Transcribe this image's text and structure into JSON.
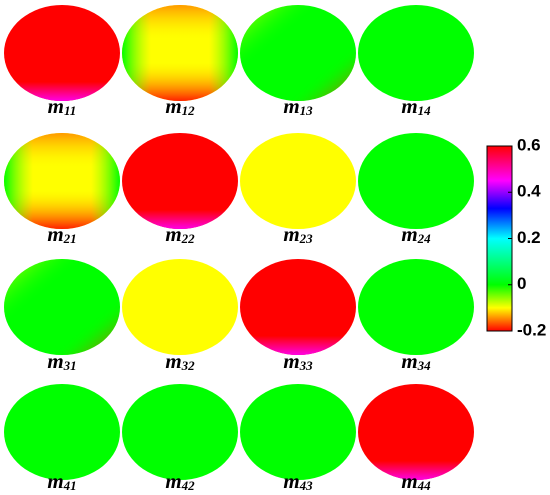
{
  "panels": [
    {
      "main": "m",
      "sub": "11",
      "value": 0.6,
      "pattern": "edge"
    },
    {
      "main": "m",
      "sub": "12",
      "value": -0.1,
      "pattern": "saddle"
    },
    {
      "main": "m",
      "sub": "13",
      "value": 0,
      "pattern": "quadrant"
    },
    {
      "main": "m",
      "sub": "14",
      "value": 0,
      "pattern": "uniform"
    },
    {
      "main": "m",
      "sub": "21",
      "value": -0.1,
      "pattern": "saddle"
    },
    {
      "main": "m",
      "sub": "22",
      "value": 0.6,
      "pattern": "edge"
    },
    {
      "main": "m",
      "sub": "23",
      "value": -0.1,
      "pattern": "uniform"
    },
    {
      "main": "m",
      "sub": "24",
      "value": 0,
      "pattern": "uniform"
    },
    {
      "main": "m",
      "sub": "31",
      "value": 0,
      "pattern": "quadrant"
    },
    {
      "main": "m",
      "sub": "32",
      "value": -0.1,
      "pattern": "uniform"
    },
    {
      "main": "m",
      "sub": "33",
      "value": 0.6,
      "pattern": "edge"
    },
    {
      "main": "m",
      "sub": "34",
      "value": 0,
      "pattern": "uniform"
    },
    {
      "main": "m",
      "sub": "41",
      "value": 0,
      "pattern": "uniform"
    },
    {
      "main": "m",
      "sub": "42",
      "value": 0,
      "pattern": "uniform"
    },
    {
      "main": "m",
      "sub": "43",
      "value": 0,
      "pattern": "uniform"
    },
    {
      "main": "m",
      "sub": "44",
      "value": 0.6,
      "pattern": "edge"
    }
  ],
  "colorbar": {
    "lim": [
      -0.2,
      0.6
    ],
    "ticks": [
      -0.2,
      0,
      0.2,
      0.4,
      0.6
    ],
    "stops": [
      {
        "value": -0.2,
        "color": "#ff0000"
      },
      {
        "value": -0.1,
        "color": "#ffff00"
      },
      {
        "value": 0,
        "color": "#00ff00"
      },
      {
        "value": 0.2,
        "color": "#00ffff"
      },
      {
        "value": 0.33,
        "color": "#0000ff"
      },
      {
        "value": 0.45,
        "color": "#ff00ff"
      },
      {
        "value": 0.6,
        "color": "#ff0000"
      }
    ]
  }
}
